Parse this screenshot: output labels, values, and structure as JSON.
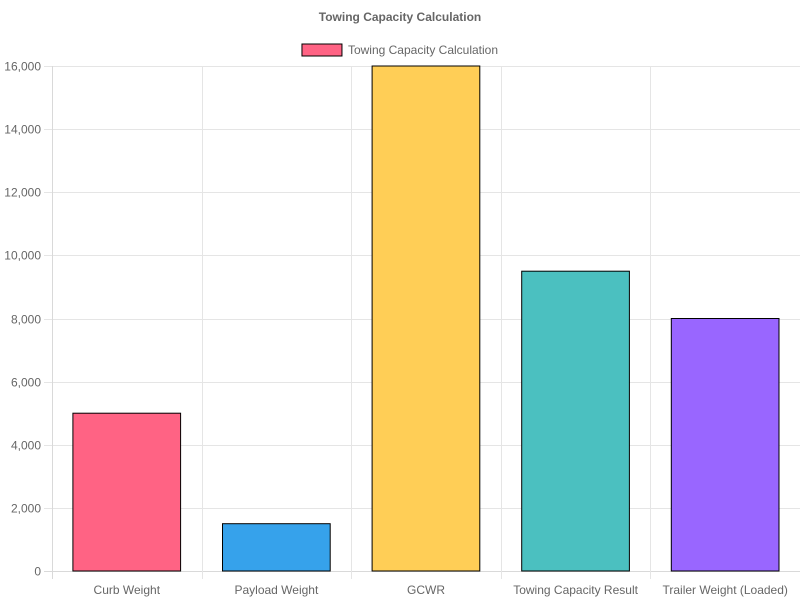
{
  "chart_data": {
    "type": "bar",
    "title": "Towing Capacity Calculation",
    "xlabel": "",
    "ylabel": "",
    "categories": [
      "Curb Weight",
      "Payload Weight",
      "GCWR",
      "Towing Capacity Result",
      "Trailer Weight (Loaded)"
    ],
    "series": [
      {
        "name": "Towing Capacity Calculation",
        "values": [
          5000,
          1500,
          16000,
          9500,
          8000
        ],
        "colors": [
          "#ff6384",
          "#36a2eb",
          "#ffce56",
          "#4bc0c0",
          "#9966ff"
        ],
        "border_color": "#000000"
      }
    ],
    "ylim": [
      0,
      16000
    ],
    "y_ticks": [
      "0",
      "2,000",
      "4,000",
      "6,000",
      "8,000",
      "10,000",
      "12,000",
      "14,000",
      "16,000"
    ],
    "grid": true,
    "legend": {
      "position": "top",
      "label": "Towing Capacity Calculation",
      "swatch_color": "#ff6384"
    }
  }
}
